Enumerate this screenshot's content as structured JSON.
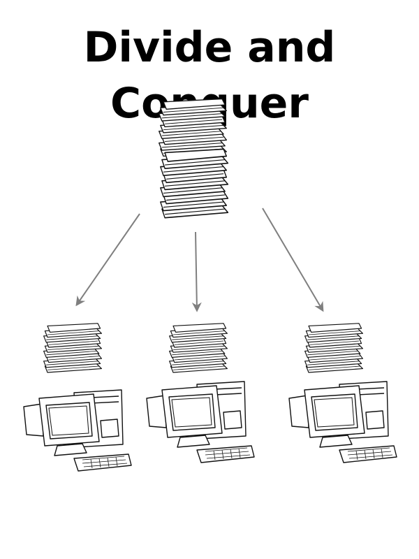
{
  "title": "Divide and Conquer",
  "colors": {
    "ink": "#111111",
    "arrow": "#7f7f7f",
    "paper": "#ffffff"
  },
  "diagram": {
    "source": {
      "icon": "paper-stack-icon"
    },
    "workers": [
      {
        "stack_icon": "paper-stack-icon",
        "machine_icon": "desktop-computer-icon"
      },
      {
        "stack_icon": "paper-stack-icon",
        "machine_icon": "desktop-computer-icon"
      },
      {
        "stack_icon": "paper-stack-icon",
        "machine_icon": "desktop-computer-icon"
      }
    ]
  }
}
